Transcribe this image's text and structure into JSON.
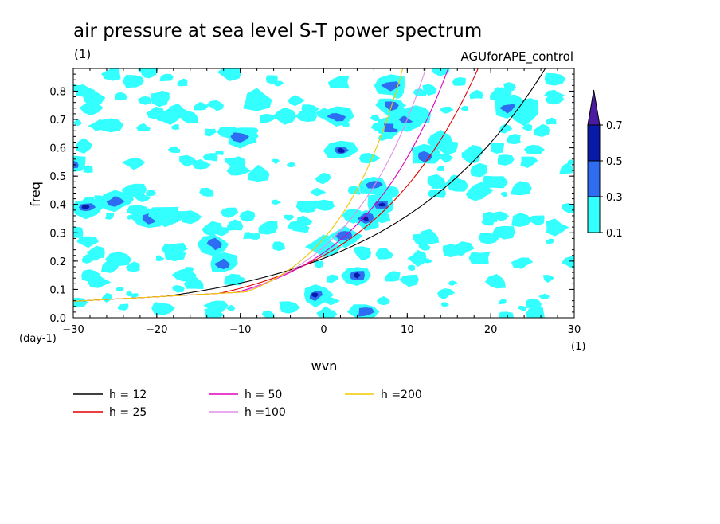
{
  "chart_data": {
    "type": "heatmap",
    "title": "air pressure at sea level S-T power spectrum",
    "units": "(1)",
    "experiment": "AGUforAPE_control",
    "xlabel": "wvn",
    "ylabel": "freq",
    "x_unit": "(1)",
    "y_unit": "(day-1)",
    "xlim": [
      -30,
      30
    ],
    "ylim": [
      0.0,
      0.88
    ],
    "xticks": [
      "-30",
      "-20",
      "-10",
      "0",
      "10",
      "20",
      "30"
    ],
    "yticks": [
      "0.0",
      "0.1",
      "0.2",
      "0.3",
      "0.4",
      "0.5",
      "0.6",
      "0.7",
      "0.8"
    ],
    "colorbar": {
      "levels": [
        "0.1",
        "0.3",
        "0.5",
        "0.7"
      ],
      "colors": [
        "#33ffff",
        "#2e6cf2",
        "#0a1aa8",
        "#4a1ba0"
      ],
      "extend": "max"
    },
    "contours": [
      {
        "x": -30,
        "y": 0.54,
        "level": 2
      },
      {
        "x": -28.5,
        "y": 0.39,
        "level": 3
      },
      {
        "x": -25,
        "y": 0.41,
        "level": 2
      },
      {
        "x": -21,
        "y": 0.35,
        "level": 2
      },
      {
        "x": -19,
        "y": 0.36,
        "level": 1
      },
      {
        "x": -13,
        "y": 0.26,
        "level": 2
      },
      {
        "x": -12,
        "y": 0.19,
        "level": 2
      },
      {
        "x": -10,
        "y": 0.64,
        "level": 2
      },
      {
        "x": -8,
        "y": 0.77,
        "level": 1
      },
      {
        "x": -1,
        "y": 0.08,
        "level": 3
      },
      {
        "x": 0,
        "y": 0.25,
        "level": 1
      },
      {
        "x": 1.5,
        "y": 0.71,
        "level": 2
      },
      {
        "x": 2,
        "y": 0.59,
        "level": 3
      },
      {
        "x": 2.5,
        "y": 0.29,
        "level": 2
      },
      {
        "x": 4,
        "y": 0.15,
        "level": 3
      },
      {
        "x": 5,
        "y": 0.35,
        "level": 3
      },
      {
        "x": 5,
        "y": 0.02,
        "level": 2
      },
      {
        "x": 6,
        "y": 0.47,
        "level": 2
      },
      {
        "x": 7,
        "y": 0.4,
        "level": 3
      },
      {
        "x": 8,
        "y": 0.82,
        "level": 2
      },
      {
        "x": 8,
        "y": 0.75,
        "level": 2
      },
      {
        "x": 8,
        "y": 0.67,
        "level": 2
      },
      {
        "x": 10,
        "y": 0.7,
        "level": 2
      },
      {
        "x": 11,
        "y": 0.72,
        "level": 1
      },
      {
        "x": 12,
        "y": 0.57,
        "level": 2
      },
      {
        "x": 14,
        "y": 0.62,
        "level": 1
      },
      {
        "x": 22,
        "y": 0.74,
        "level": 2
      },
      {
        "x": 24,
        "y": 0.72,
        "level": 1
      }
    ],
    "series": [
      {
        "name": "h = 12",
        "h": 12,
        "color": "#000000"
      },
      {
        "name": "h = 25",
        "h": 25,
        "color": "#e00000"
      },
      {
        "name": "h = 50",
        "h": 50,
        "color": "#e000c0"
      },
      {
        "name": "h =100",
        "h": 100,
        "color": "#e090e8"
      },
      {
        "name": "h =200",
        "h": 200,
        "color": "#f0c800"
      }
    ]
  }
}
